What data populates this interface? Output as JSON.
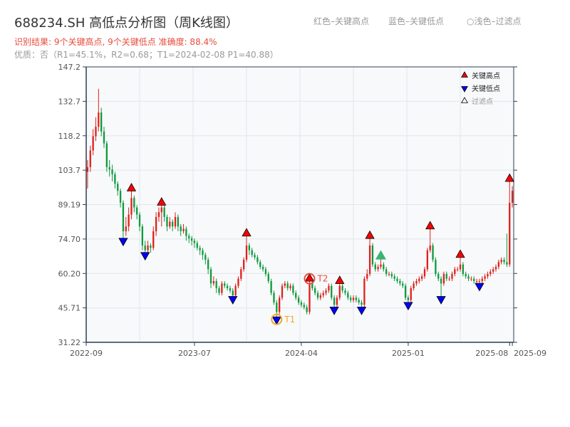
{
  "header": {
    "title": "688234.SH 高低点分析图（周K线图）",
    "result_line": "识别结果: 9个关键高点, 9个关键低点  准确度: 88.4%",
    "quality_line": "优质：否（R1=45.1%，R2=0.68；T1=2024-02-08 P1=40.88）",
    "legend_red": "红色–关键高点",
    "legend_blue": "蓝色–关键低点",
    "legend_light": "○浅色–过滤点"
  },
  "chart_data": {
    "type": "candlestick",
    "title": "688234.SH 高低点分析图（周K线图）",
    "ylim": [
      31.22,
      147.2
    ],
    "yticks": [
      "147.2",
      "132.7",
      "118.2",
      "103.7",
      "89.19",
      "74.70",
      "60.20",
      "45.71",
      "31.22"
    ],
    "xticks": [
      {
        "index": 0,
        "label": "2022-09"
      },
      {
        "index": 39,
        "label": "2023-07"
      },
      {
        "index": 78,
        "label": "2024-04"
      },
      {
        "index": 117,
        "label": "2025-01"
      },
      {
        "index": 154,
        "label": "2025-08"
      },
      {
        "index": 155,
        "label": "2025-09"
      }
    ],
    "grid": true,
    "legend": {
      "placement": "top-right",
      "items": [
        "关键高点",
        "关键低点",
        "过滤点"
      ]
    },
    "colors": {
      "up": "#e0201a",
      "down": "#0f9a3c",
      "key_high": "#ff0000",
      "key_low": "#0000ff",
      "filtered": "#3cb371",
      "t1": "#f5a623",
      "t2": "#e84c3d",
      "plot_bg": "#f7f9fb"
    },
    "candles_ohlc": [
      [
        103,
        108,
        96,
        105
      ],
      [
        105,
        114,
        103,
        112
      ],
      [
        112,
        121,
        110,
        118
      ],
      [
        118,
        126,
        116,
        122
      ],
      [
        122,
        138,
        120,
        128
      ],
      [
        128,
        130,
        118,
        120
      ],
      [
        120,
        122,
        113,
        115
      ],
      [
        115,
        116,
        103,
        105
      ],
      [
        105,
        108,
        101,
        104
      ],
      [
        104,
        106,
        99,
        102
      ],
      [
        102,
        103,
        96,
        98
      ],
      [
        98,
        99,
        93,
        95
      ],
      [
        95,
        96,
        88,
        90
      ],
      [
        90,
        91,
        74,
        78
      ],
      [
        78,
        84,
        76,
        80
      ],
      [
        80,
        88,
        78,
        85
      ],
      [
        85,
        96,
        83,
        92
      ],
      [
        92,
        93,
        86,
        88
      ],
      [
        88,
        89,
        83,
        85
      ],
      [
        85,
        86,
        78,
        80
      ],
      [
        80,
        81,
        70,
        72
      ],
      [
        72,
        74,
        68,
        70
      ],
      [
        70,
        74,
        69,
        72
      ],
      [
        72,
        73,
        69,
        71
      ],
      [
        71,
        80,
        70,
        78
      ],
      [
        78,
        86,
        76,
        84
      ],
      [
        84,
        88,
        82,
        86
      ],
      [
        86,
        90,
        80,
        88
      ],
      [
        88,
        89,
        82,
        84
      ],
      [
        84,
        85,
        78,
        80
      ],
      [
        80,
        84,
        79,
        82
      ],
      [
        82,
        83,
        78,
        80
      ],
      [
        80,
        86,
        79,
        84
      ],
      [
        84,
        85,
        78,
        80
      ],
      [
        80,
        81,
        76,
        78
      ],
      [
        78,
        81,
        77,
        79
      ],
      [
        79,
        80,
        74,
        76
      ],
      [
        76,
        77,
        73,
        75
      ],
      [
        75,
        76,
        72,
        74
      ],
      [
        74,
        75,
        71,
        73
      ],
      [
        73,
        74,
        70,
        71
      ],
      [
        71,
        72,
        68,
        70
      ],
      [
        70,
        71,
        66,
        68
      ],
      [
        68,
        69,
        64,
        66
      ],
      [
        66,
        67,
        60,
        62
      ],
      [
        62,
        63,
        54,
        56
      ],
      [
        56,
        59,
        55,
        57
      ],
      [
        57,
        58,
        52,
        54
      ],
      [
        54,
        55,
        51,
        52
      ],
      [
        52,
        57,
        51,
        56
      ],
      [
        56,
        57,
        54,
        55
      ],
      [
        55,
        56,
        53,
        54
      ],
      [
        54,
        55,
        52,
        53
      ],
      [
        53,
        54,
        49.5,
        51
      ],
      [
        51,
        56,
        50,
        55
      ],
      [
        55,
        59,
        54,
        58
      ],
      [
        58,
        63,
        57,
        62
      ],
      [
        62,
        67,
        61,
        66
      ],
      [
        66,
        77,
        65,
        72
      ],
      [
        72,
        73,
        68,
        70
      ],
      [
        70,
        71,
        67,
        68
      ],
      [
        68,
        69,
        66,
        67
      ],
      [
        67,
        68,
        64,
        65
      ],
      [
        65,
        66,
        62,
        63
      ],
      [
        63,
        64,
        61,
        62
      ],
      [
        62,
        63,
        59,
        60
      ],
      [
        60,
        61,
        56,
        57
      ],
      [
        57,
        58,
        51,
        52
      ],
      [
        52,
        53,
        47,
        48
      ],
      [
        48,
        49,
        40.88,
        44
      ],
      [
        44,
        51,
        43,
        50
      ],
      [
        50,
        56,
        49,
        55
      ],
      [
        55,
        57,
        54,
        56
      ],
      [
        56,
        57,
        53,
        54
      ],
      [
        54,
        56,
        53,
        55
      ],
      [
        55,
        56,
        51,
        52
      ],
      [
        52,
        53,
        49,
        50
      ],
      [
        50,
        51,
        47,
        48
      ],
      [
        48,
        49,
        46,
        47
      ],
      [
        47,
        48,
        45,
        46
      ],
      [
        46,
        47,
        43,
        44
      ],
      [
        44,
        58,
        43,
        56
      ],
      [
        56,
        57,
        53,
        54
      ],
      [
        54,
        55,
        51,
        52
      ],
      [
        52,
        53,
        49,
        50
      ],
      [
        50,
        52,
        49,
        51
      ],
      [
        51,
        53,
        50,
        52
      ],
      [
        52,
        54,
        51,
        53
      ],
      [
        53,
        56,
        52,
        55
      ],
      [
        55,
        56,
        49,
        50
      ],
      [
        50,
        51,
        45,
        47
      ],
      [
        47,
        51,
        46,
        50
      ],
      [
        50,
        57,
        49,
        55
      ],
      [
        55,
        56,
        52,
        53
      ],
      [
        53,
        54,
        51,
        52
      ],
      [
        52,
        53,
        49,
        50
      ],
      [
        50,
        51,
        48,
        49
      ],
      [
        49,
        51,
        48,
        50
      ],
      [
        50,
        51,
        48,
        49
      ],
      [
        49,
        50,
        47,
        48
      ],
      [
        48,
        49,
        45,
        47
      ],
      [
        47,
        59,
        46,
        58
      ],
      [
        58,
        62,
        57,
        60
      ],
      [
        60,
        76,
        59,
        72
      ],
      [
        72,
        73,
        63,
        64
      ],
      [
        64,
        65,
        61,
        62
      ],
      [
        62,
        64,
        61,
        63
      ],
      [
        63,
        68,
        62,
        64
      ],
      [
        64,
        65,
        61,
        62
      ],
      [
        62,
        63,
        59,
        60
      ],
      [
        60,
        61,
        59,
        60
      ],
      [
        60,
        61,
        58,
        59
      ],
      [
        59,
        60,
        57,
        58
      ],
      [
        58,
        59,
        56,
        57
      ],
      [
        57,
        58,
        55,
        56
      ],
      [
        56,
        57,
        54,
        55
      ],
      [
        55,
        56,
        49,
        50
      ],
      [
        50,
        51,
        47,
        49
      ],
      [
        49,
        55,
        48,
        54
      ],
      [
        54,
        57,
        53,
        56
      ],
      [
        56,
        58,
        55,
        57
      ],
      [
        57,
        59,
        56,
        58
      ],
      [
        58,
        60,
        57,
        59
      ],
      [
        59,
        63,
        58,
        62
      ],
      [
        62,
        71,
        61,
        70
      ],
      [
        70,
        80,
        69,
        72
      ],
      [
        72,
        73,
        65,
        66
      ],
      [
        66,
        67,
        59,
        60
      ],
      [
        60,
        61,
        57,
        58
      ],
      [
        58,
        59,
        49.5,
        56
      ],
      [
        56,
        61,
        55,
        60
      ],
      [
        60,
        61,
        57,
        58
      ],
      [
        58,
        59,
        57,
        58
      ],
      [
        58,
        61,
        57,
        60
      ],
      [
        60,
        63,
        59,
        62
      ],
      [
        62,
        63,
        61,
        62
      ],
      [
        62,
        68,
        61,
        64
      ],
      [
        64,
        65,
        59,
        60
      ],
      [
        60,
        61,
        58,
        59
      ],
      [
        59,
        60,
        57,
        58
      ],
      [
        58,
        59,
        57,
        58
      ],
      [
        58,
        59,
        56,
        57
      ],
      [
        57,
        58,
        56,
        57
      ],
      [
        57,
        58,
        55,
        57
      ],
      [
        57,
        59,
        56,
        58
      ],
      [
        58,
        60,
        57,
        59
      ],
      [
        59,
        61,
        58,
        60
      ],
      [
        60,
        62,
        59,
        61
      ],
      [
        61,
        63,
        60,
        62
      ],
      [
        62,
        64,
        61,
        63
      ],
      [
        63,
        66,
        62,
        65
      ],
      [
        65,
        67,
        64,
        66
      ],
      [
        66,
        67,
        64,
        65
      ],
      [
        65,
        77,
        63,
        64
      ],
      [
        64,
        100,
        63,
        90
      ],
      [
        90,
        97,
        88,
        95
      ]
    ],
    "key_highs": [
      16,
      27,
      58,
      81,
      92,
      103,
      125,
      136,
      154
    ],
    "key_lows": [
      13,
      21,
      53,
      69,
      90,
      100,
      117,
      129,
      143
    ],
    "filtered_points": [
      {
        "index": 107,
        "type": "high"
      }
    ],
    "annotations": [
      {
        "label": "T1",
        "index": 69,
        "value": 40.88,
        "kind": "low"
      },
      {
        "label": "T2",
        "index": 81,
        "value": 58,
        "kind": "high"
      }
    ]
  }
}
